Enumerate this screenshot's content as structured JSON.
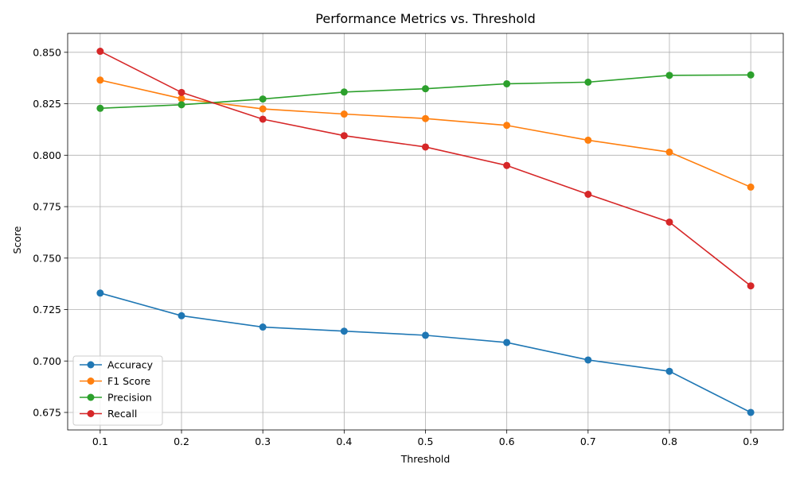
{
  "chart_data": {
    "type": "line",
    "title": "Performance Metrics vs. Threshold",
    "xlabel": "Threshold",
    "ylabel": "Score",
    "x": [
      0.1,
      0.2,
      0.3,
      0.4,
      0.5,
      0.6,
      0.7,
      0.8,
      0.9
    ],
    "x_ticks": [
      "0.1",
      "0.2",
      "0.3",
      "0.4",
      "0.5",
      "0.6",
      "0.7",
      "0.8",
      "0.9"
    ],
    "xlim": [
      0.06,
      0.94
    ],
    "ylim": [
      0.6665,
      0.8592
    ],
    "y_ticks": [
      "0.675",
      "0.700",
      "0.725",
      "0.750",
      "0.775",
      "0.800",
      "0.825",
      "0.850"
    ],
    "grid": true,
    "legend_position": "lower-left",
    "marker": "circle",
    "series": [
      {
        "name": "Accuracy",
        "color": "#1f77b4",
        "values": [
          0.733,
          0.722,
          0.7165,
          0.7145,
          0.7125,
          0.709,
          0.7005,
          0.695,
          0.675
        ]
      },
      {
        "name": "F1 Score",
        "color": "#ff7f0e",
        "values": [
          0.8365,
          0.8275,
          0.8225,
          0.82,
          0.8178,
          0.8145,
          0.8073,
          0.8015,
          0.7845
        ]
      },
      {
        "name": "Precision",
        "color": "#2ca02c",
        "values": [
          0.8228,
          0.8245,
          0.8273,
          0.8307,
          0.8323,
          0.8347,
          0.8355,
          0.8388,
          0.839
        ]
      },
      {
        "name": "Recall",
        "color": "#d62728",
        "values": [
          0.8505,
          0.8305,
          0.8175,
          0.8095,
          0.804,
          0.795,
          0.781,
          0.7675,
          0.7365
        ]
      }
    ]
  }
}
